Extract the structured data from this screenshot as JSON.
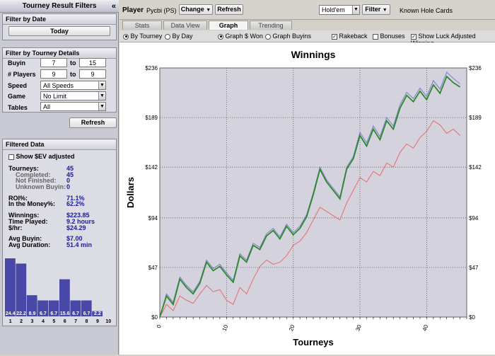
{
  "sidebar": {
    "title": "Tourney Result Filters",
    "collapse_glyph": "«",
    "filter_by_date": {
      "title": "Filter by Date",
      "today_label": "Today"
    },
    "tourney_details": {
      "title": "Filter by Tourney Details",
      "buyin_label": "Buyin",
      "buyin_from": "7",
      "buyin_to": "15",
      "players_label": "# Players",
      "players_from": "9",
      "players_to": "9",
      "to_label": "to",
      "speed_label": "Speed",
      "speed_value": "All Speeds",
      "game_label": "Game",
      "game_value": "No Limit",
      "tables_label": "Tables",
      "tables_value": "All",
      "refresh_label": "Refresh"
    },
    "filtered_data": {
      "title": "Filtered Data",
      "show_ev_label": "Show $EV adjusted",
      "stats": [
        {
          "label": "Tourneys:",
          "value": "45",
          "sub": false
        },
        {
          "label": "Completed:",
          "value": "45",
          "sub": true
        },
        {
          "label": "Not Finished:",
          "value": "0",
          "sub": true
        },
        {
          "label": "Unknown Buyin:",
          "value": "0",
          "sub": true
        },
        {
          "label": "ROI%:",
          "value": "71.1%",
          "sub": false
        },
        {
          "label": "In the Money%:",
          "value": "62.2%",
          "sub": false
        },
        {
          "label": "Winnings:",
          "value": "$223.85",
          "sub": false
        },
        {
          "label": "Time Played:",
          "value": "9.2 hours",
          "sub": false
        },
        {
          "label": "$/hr:",
          "value": "$24.29",
          "sub": false
        },
        {
          "label": "Avg Buyin:",
          "value": "$7.00",
          "sub": false
        },
        {
          "label": "Avg Duration:",
          "value": "51.4 min",
          "sub": false
        }
      ],
      "histogram": {
        "values": [
          24.4,
          22.2,
          8.9,
          6.7,
          6.7,
          15.6,
          6.7,
          6.7,
          2.2,
          0
        ],
        "value_labels": [
          "24.4",
          "22.2",
          "8.9",
          "6.7",
          "6.7",
          "15.6",
          "6.7",
          "6.7",
          "2.2",
          ""
        ],
        "categories": [
          "1",
          "2",
          "3",
          "4",
          "5",
          "6",
          "7",
          "8",
          "9",
          "10"
        ],
        "bar_color": "#4848a8"
      }
    }
  },
  "topbar": {
    "player_label": "Player",
    "player_value": "Pycbi (PS)",
    "change_label": "Change",
    "refresh_label": "Refresh",
    "game_select": "Hold'em",
    "filter_label": "Filter",
    "known_hole_cards": "Known Hole Cards"
  },
  "tabs": [
    {
      "label": "Stats",
      "active": false
    },
    {
      "label": "Data View",
      "active": false
    },
    {
      "label": "Graph",
      "active": true
    },
    {
      "label": "Trending",
      "active": false
    }
  ],
  "options": {
    "by_tourney": "By Tourney",
    "by_day": "By Day",
    "graph_won": "Graph $ Won",
    "graph_buyins": "Graph Buyins",
    "rakeback": "Rakeback",
    "bonuses": "Bonuses",
    "luck_adjusted": "Show Luck Adjusted Winning"
  },
  "chart_data": {
    "type": "line",
    "title": "Winnings",
    "xlabel": "Tourneys",
    "ylabel": "Dollars",
    "xlim": [
      0,
      46
    ],
    "ylim": [
      0,
      236
    ],
    "y_ticks": [
      "$0",
      "$47",
      "$94",
      "$142",
      "$189",
      "$236"
    ],
    "y_tick_values": [
      0,
      47,
      94,
      142,
      189,
      236
    ],
    "x_ticks": [
      "0",
      "10",
      "20",
      "30",
      "40"
    ],
    "x_tick_values": [
      0,
      10,
      20,
      30,
      40
    ],
    "grid": true,
    "series": [
      {
        "color": "#2c8a2c",
        "values": [
          0,
          20,
          12,
          36,
          28,
          22,
          32,
          52,
          44,
          48,
          40,
          33,
          58,
          52,
          68,
          64,
          77,
          82,
          74,
          86,
          78,
          84,
          95,
          116,
          140,
          128,
          120,
          112,
          140,
          150,
          172,
          162,
          178,
          168,
          186,
          178,
          198,
          210,
          204,
          214,
          206,
          220,
          212,
          228,
          222,
          218
        ]
      },
      {
        "color": "#7a7acc",
        "values": [
          0,
          22,
          14,
          38,
          30,
          24,
          34,
          54,
          46,
          50,
          42,
          35,
          60,
          54,
          70,
          66,
          79,
          84,
          76,
          88,
          80,
          86,
          97,
          118,
          142,
          130,
          122,
          114,
          142,
          152,
          175,
          165,
          181,
          171,
          189,
          181,
          201,
          213,
          207,
          217,
          209,
          224,
          216,
          232,
          226,
          221
        ]
      },
      {
        "color": "#e86a6a",
        "values": [
          0,
          12,
          6,
          20,
          16,
          13,
          22,
          30,
          24,
          26,
          16,
          12,
          28,
          22,
          36,
          48,
          54,
          50,
          52,
          58,
          68,
          72,
          80,
          92,
          104,
          100,
          96,
          92,
          108,
          120,
          132,
          128,
          138,
          134,
          146,
          142,
          156,
          164,
          160,
          170,
          176,
          186,
          182,
          174,
          178,
          172
        ]
      }
    ]
  }
}
